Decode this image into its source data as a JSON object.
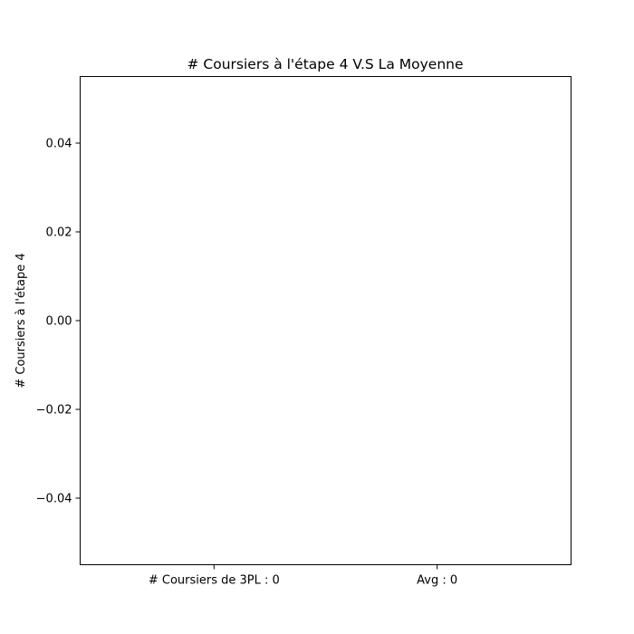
{
  "chart_data": {
    "type": "bar",
    "title": "# Coursiers à l'étape 4 V.S La Moyenne",
    "xlabel": "",
    "ylabel": "# Coursiers à l'étape 4",
    "categories": [
      "# Coursiers de 3PL : 0",
      "Avg : 0"
    ],
    "values": [
      0,
      0
    ],
    "ylim": [
      -0.055,
      0.055
    ],
    "yticks": [
      -0.04,
      -0.02,
      0.0,
      0.02,
      0.04
    ],
    "ytick_labels": [
      "−0.04",
      "−0.02",
      "0.00",
      "0.02",
      "0.04"
    ],
    "grid": false,
    "colors": {
      "axis": "#000000",
      "background": "#ffffff"
    }
  }
}
